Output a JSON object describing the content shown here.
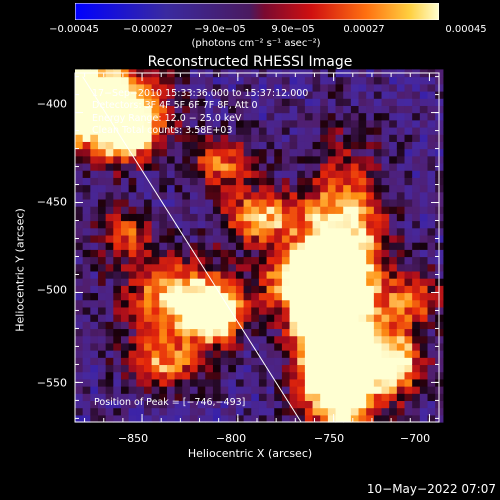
{
  "chart_data": {
    "type": "heatmap",
    "title": "Reconstructed RHESSI Image",
    "xlabel": "Heliocentric X (arcsec)",
    "ylabel": "Heliocentric Y (arcsec)",
    "xlim": [
      -885,
      -695
    ],
    "ylim": [
      -572,
      -378
    ],
    "x_ticks": [
      -850,
      -800,
      -750,
      -700
    ],
    "y_ticks": [
      -400,
      -450,
      -500,
      -550
    ],
    "x_tick_labels": [
      "−850",
      "−800",
      "−750",
      "−700"
    ],
    "y_tick_labels": [
      "−400",
      "−450",
      "−500",
      "−550"
    ],
    "colorbar": {
      "range": [
        -0.00045,
        0.00045
      ],
      "tick_labels": [
        "−0.00045",
        "−0.00027",
        "−9.0e−05",
        "9.0e−05",
        "0.00027",
        "0.00045"
      ],
      "units": "(photons cm⁻² s⁻¹ asec⁻²)",
      "colors": [
        "#0000ff",
        "#3a1a8c",
        "#5a2a9a",
        "#b0103a",
        "#e83010",
        "#ff9a18",
        "#ffffcc"
      ]
    },
    "annotations": {
      "time_range": "17−Sep−2010 15:33:36.000 to 15:37:12.000",
      "detectors": "Detectors: 3F 4F 5F 6F 7F 8F, Att 0",
      "energy": "Energy Range: 12.0 − 25.0 keV",
      "clean": "Clean     Total counts: 3.58E+03",
      "peak": "Position of Peak = [−746,−493]"
    },
    "peak_position": [
      -746,
      -493
    ],
    "limb_line": {
      "from": [
        -881,
        -380
      ],
      "to": [
        -767,
        -572
      ]
    },
    "grid": false
  },
  "footer": {
    "date": "10−May−2022 07:07"
  }
}
